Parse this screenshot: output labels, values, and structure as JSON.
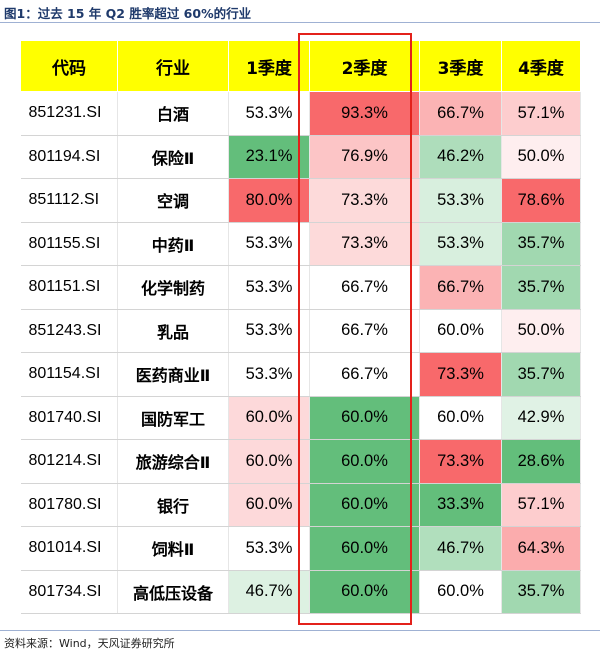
{
  "figure": {
    "title": "图1：过去 15 年 Q2 胜率超过 60%的行业",
    "source": "资料来源：Wind，天风证券研究所"
  },
  "colors": {
    "header_bg": "#ffff00",
    "highlight_border": "#e3211b",
    "scale_high": "#f8696b",
    "scale_mid": "#ffffff",
    "scale_low": "#63be7b"
  },
  "chart_data": {
    "type": "table",
    "columns": [
      "代码",
      "行业",
      "1季度",
      "2季度",
      "3季度",
      "4季度"
    ],
    "rows": [
      {
        "code": "851231.SI",
        "industry": "白酒",
        "q1": "53.3%",
        "q2": "93.3%",
        "q3": "66.7%",
        "q4": "57.1%"
      },
      {
        "code": "801194.SI",
        "industry": "保险Ⅱ",
        "q1": "23.1%",
        "q2": "76.9%",
        "q3": "46.2%",
        "q4": "50.0%"
      },
      {
        "code": "851112.SI",
        "industry": "空调",
        "q1": "80.0%",
        "q2": "73.3%",
        "q3": "53.3%",
        "q4": "78.6%"
      },
      {
        "code": "801155.SI",
        "industry": "中药Ⅱ",
        "q1": "53.3%",
        "q2": "73.3%",
        "q3": "53.3%",
        "q4": "35.7%"
      },
      {
        "code": "801151.SI",
        "industry": "化学制药",
        "q1": "53.3%",
        "q2": "66.7%",
        "q3": "66.7%",
        "q4": "35.7%"
      },
      {
        "code": "851243.SI",
        "industry": "乳品",
        "q1": "53.3%",
        "q2": "66.7%",
        "q3": "60.0%",
        "q4": "50.0%"
      },
      {
        "code": "801154.SI",
        "industry": "医药商业Ⅱ",
        "q1": "53.3%",
        "q2": "66.7%",
        "q3": "73.3%",
        "q4": "35.7%"
      },
      {
        "code": "801740.SI",
        "industry": "国防军工",
        "q1": "60.0%",
        "q2": "60.0%",
        "q3": "60.0%",
        "q4": "42.9%"
      },
      {
        "code": "801214.SI",
        "industry": "旅游综合Ⅱ",
        "q1": "60.0%",
        "q2": "60.0%",
        "q3": "73.3%",
        "q4": "28.6%"
      },
      {
        "code": "801780.SI",
        "industry": "银行",
        "q1": "60.0%",
        "q2": "60.0%",
        "q3": "33.3%",
        "q4": "57.1%"
      },
      {
        "code": "801014.SI",
        "industry": "饲料Ⅱ",
        "q1": "53.3%",
        "q2": "60.0%",
        "q3": "46.7%",
        "q4": "64.3%"
      },
      {
        "code": "801734.SI",
        "industry": "高低压设备",
        "q1": "46.7%",
        "q2": "60.0%",
        "q3": "60.0%",
        "q4": "35.7%"
      }
    ],
    "highlighted_column": "2季度"
  }
}
